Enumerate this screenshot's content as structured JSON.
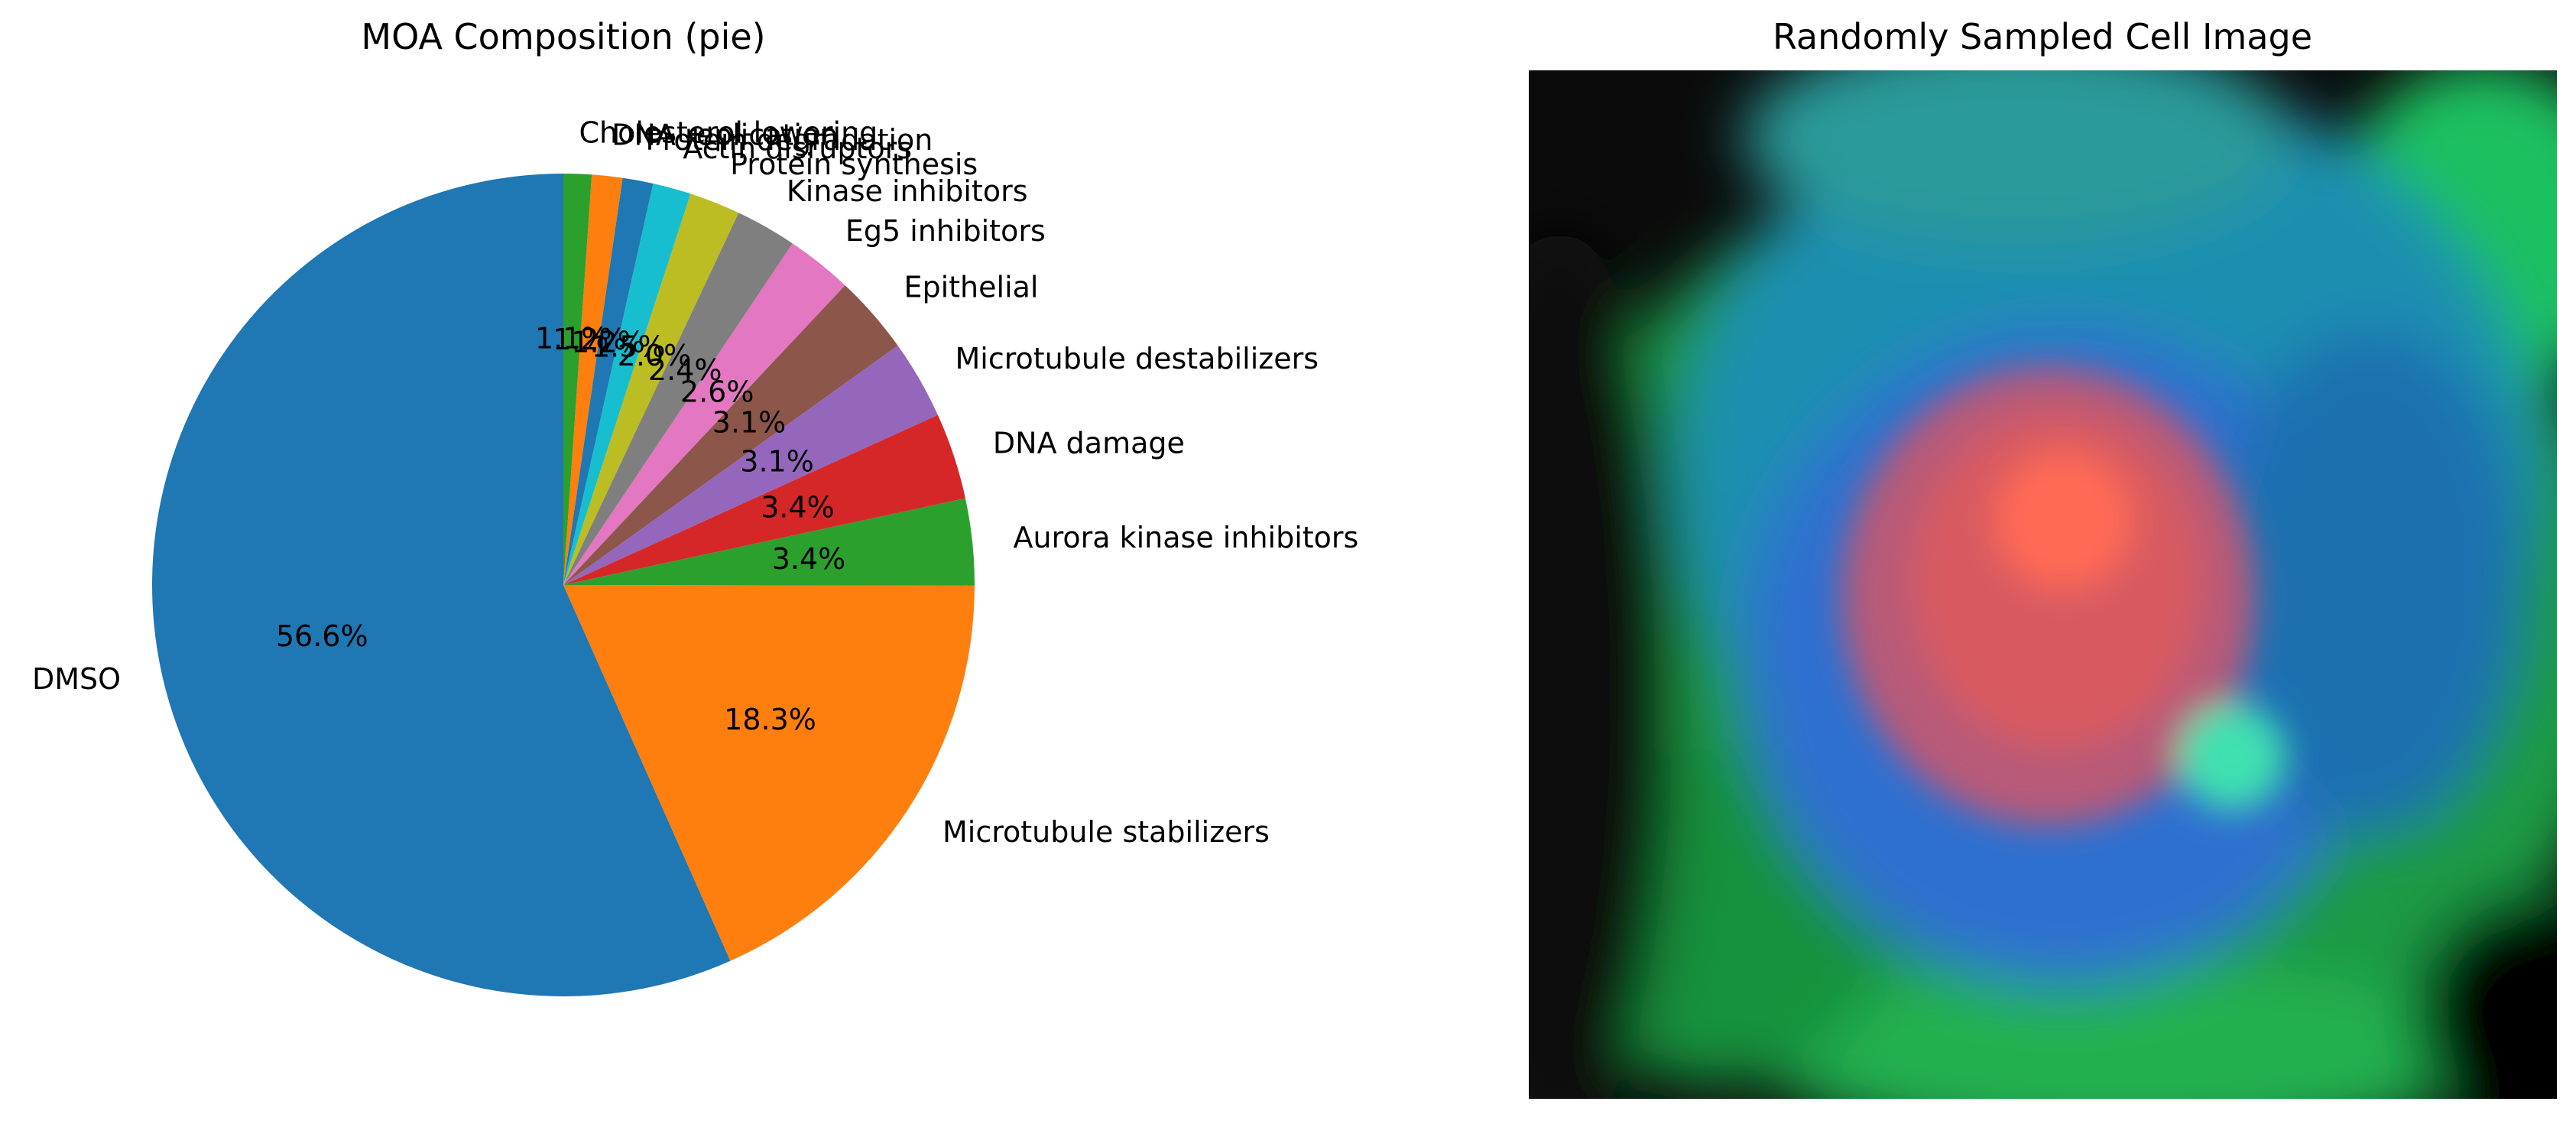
{
  "chart_data": [
    {
      "type": "pie",
      "title": "MOA Composition (pie)",
      "start_angle_deg": 90,
      "direction": "counterclockwise",
      "categories": [
        "DMSO",
        "Microtubule stabilizers",
        "Aurora kinase inhibitors",
        "DNA damage",
        "Microtubule destabilizers",
        "Epithelial",
        "Eg5 inhibitors",
        "Kinase inhibitors",
        "Protein synthesis",
        "Actin disruptors",
        "Protein degradation",
        "DNA replication",
        "Cholesterol-lowering"
      ],
      "values": [
        56.6,
        18.3,
        3.4,
        3.4,
        3.1,
        3.1,
        2.6,
        2.4,
        2.0,
        1.5,
        1.2,
        1.2,
        1.1
      ],
      "pct_labels": [
        "56.6%",
        "18.3%",
        "3.4%",
        "3.4%",
        "3.1%",
        "3.1%",
        "2.6%",
        "2.4%",
        "2.0%",
        "1.5%",
        "1.2%",
        "1.2%",
        "1.1%"
      ],
      "colors": [
        "#1f77b4",
        "#ff7f0e",
        "#2ca02c",
        "#d62728",
        "#9467bd",
        "#8c564b",
        "#e377c2",
        "#7f7f7f",
        "#bcbd22",
        "#17becf",
        "#1f77b4",
        "#ff7f0e",
        "#2ca02c"
      ]
    },
    {
      "type": "image",
      "title": "Randomly Sampled Cell Image",
      "description_colors": {
        "background": "#0a0a0a",
        "membrane": "#1fbf4a",
        "cytoplasm": "#1a7fc0",
        "nucleus": "#e0555a"
      }
    }
  ]
}
